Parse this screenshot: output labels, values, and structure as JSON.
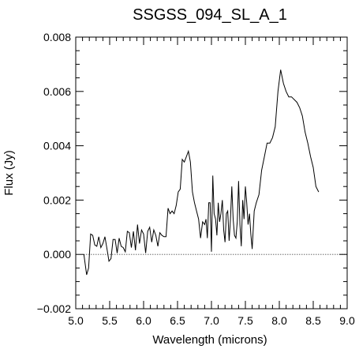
{
  "chart_data": {
    "type": "line",
    "title": "SSGSS_094_SL_A_1",
    "xlabel": "Wavelength (microns)",
    "ylabel": "Flux (Jy)",
    "xlim": [
      5.0,
      9.0
    ],
    "ylim": [
      -0.002,
      0.008
    ],
    "xticks": [
      "5.0",
      "5.5",
      "6.0",
      "6.5",
      "7.0",
      "7.5",
      "8.0",
      "8.5",
      "9.0"
    ],
    "yticks": [
      "−0.002",
      "0.000",
      "0.002",
      "0.004",
      "0.006",
      "0.008"
    ],
    "grid": false,
    "zero_line": {
      "y": 0.0,
      "style": "dotted"
    },
    "series": [
      {
        "color": "#000000",
        "x": [
          5.12,
          5.16,
          5.19,
          5.22,
          5.25,
          5.28,
          5.31,
          5.34,
          5.37,
          5.4,
          5.43,
          5.46,
          5.49,
          5.52,
          5.55,
          5.58,
          5.61,
          5.64,
          5.67,
          5.7,
          5.73,
          5.76,
          5.79,
          5.82,
          5.85,
          5.88,
          5.91,
          5.94,
          5.97,
          6.0,
          6.03,
          6.06,
          6.09,
          6.12,
          6.15,
          6.18,
          6.21,
          6.24,
          6.27,
          6.3,
          6.33,
          6.36,
          6.39,
          6.42,
          6.45,
          6.48,
          6.51,
          6.54,
          6.57,
          6.6,
          6.63,
          6.66,
          6.69,
          6.72,
          6.75,
          6.78,
          6.81,
          6.84,
          6.87,
          6.9,
          6.92,
          6.94,
          6.96,
          6.98,
          7.0,
          7.02,
          7.04,
          7.06,
          7.08,
          7.1,
          7.12,
          7.14,
          7.16,
          7.18,
          7.2,
          7.22,
          7.24,
          7.26,
          7.28,
          7.3,
          7.32,
          7.34,
          7.36,
          7.38,
          7.4,
          7.42,
          7.44,
          7.46,
          7.48,
          7.5,
          7.52,
          7.54,
          7.56,
          7.58,
          7.6,
          7.63,
          7.66,
          7.7,
          7.74,
          7.78,
          7.82,
          7.86,
          7.9,
          7.94,
          7.98,
          8.02,
          8.06,
          8.1,
          8.14,
          8.18,
          8.22,
          8.26,
          8.3,
          8.34,
          8.38,
          8.42,
          8.46,
          8.5,
          8.54,
          8.58
        ],
        "y": [
          0.0,
          -0.00075,
          -0.0005,
          0.00075,
          0.0007,
          0.00035,
          0.0003,
          0.00065,
          0.00025,
          0.0004,
          0.00065,
          0.0002,
          -0.00025,
          -0.00015,
          0.00055,
          0.00055,
          5e-05,
          0.0006,
          0.0003,
          0.00025,
          0.0001,
          0.00085,
          0.0008,
          0.00025,
          0.00085,
          0.00015,
          0.0011,
          0.0004,
          0.0009,
          0.00075,
          5e-05,
          0.00085,
          0.001,
          0.00045,
          0.0009,
          0.0007,
          0.0003,
          0.0008,
          0.0007,
          0.00065,
          0.00065,
          0.0017,
          0.0015,
          0.0016,
          0.0015,
          0.0018,
          0.0023,
          0.0024,
          0.0035,
          0.0034,
          0.0036,
          0.0038,
          0.0034,
          0.0023,
          0.0019,
          0.0016,
          0.0013,
          0.0006,
          0.0012,
          0.0011,
          0.0013,
          0.0006,
          0.0019,
          0.0019,
          0.0001,
          0.0029,
          0.0015,
          0.0013,
          0.0007,
          0.0019,
          0.0012,
          0.0015,
          0.002,
          0.0009,
          0.00045,
          0.0015,
          0.0016,
          0.0005,
          0.0013,
          0.0025,
          0.0013,
          0.0007,
          0.0006,
          0.0012,
          0.0027,
          0.0011,
          0.0003,
          0.002,
          0.0013,
          0.0025,
          0.0019,
          0.0011,
          0.0015,
          0.00075,
          0.0002,
          0.0016,
          0.0019,
          0.0022,
          0.0031,
          0.0036,
          0.0041,
          0.0041,
          0.0043,
          0.0047,
          0.006,
          0.0068,
          0.0063,
          0.006,
          0.0058,
          0.0058,
          0.0057,
          0.0056,
          0.0054,
          0.0051,
          0.0045,
          0.0041,
          0.0036,
          0.0032,
          0.0025,
          0.0023
        ]
      }
    ]
  }
}
